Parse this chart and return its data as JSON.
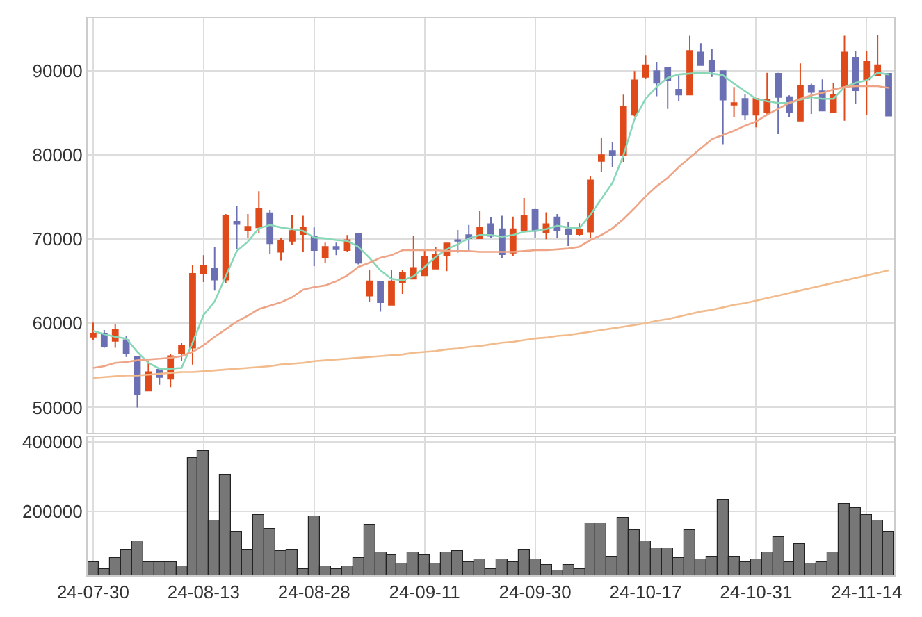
{
  "chart_data": [
    {
      "type": "candlestick",
      "categories": [
        null,
        null,
        null,
        null,
        null,
        null,
        null,
        null,
        null,
        null,
        null,
        null,
        null,
        null,
        null,
        null,
        null,
        null,
        null,
        null,
        null,
        null,
        null,
        null,
        null,
        null,
        null,
        null,
        null,
        null,
        null,
        null,
        null,
        null,
        null,
        null,
        null,
        null,
        null,
        null,
        null,
        null,
        null,
        null,
        null,
        null,
        null,
        null,
        null,
        null,
        null,
        null,
        null,
        null,
        null,
        null,
        null,
        null,
        null,
        null,
        null,
        null,
        null,
        null,
        null,
        null,
        null,
        null,
        null,
        null,
        null,
        null,
        null
      ],
      "ohlc": [
        [
          58400,
          60100,
          58000,
          58800
        ],
        [
          58800,
          59200,
          57100,
          57300
        ],
        [
          57900,
          59900,
          57100,
          59200
        ],
        [
          58000,
          58500,
          56000,
          56400
        ],
        [
          56000,
          56000,
          50000,
          51600
        ],
        [
          52000,
          55500,
          52000,
          54200
        ],
        [
          54500,
          54500,
          52700,
          53600
        ],
        [
          53400,
          56300,
          52400,
          56100
        ],
        [
          56400,
          57700,
          55500,
          57300
        ],
        [
          57100,
          66900,
          55100,
          65900
        ],
        [
          65900,
          68100,
          64900,
          66800
        ],
        [
          66500,
          69100,
          63900,
          65200
        ],
        [
          65200,
          73000,
          64800,
          72800
        ],
        [
          72100,
          74000,
          68800,
          71800
        ],
        [
          71100,
          73000,
          70200,
          71500
        ],
        [
          71400,
          75700,
          70700,
          73600
        ],
        [
          73100,
          73500,
          68200,
          69500
        ],
        [
          68500,
          70200,
          67500,
          69800
        ],
        [
          69800,
          72900,
          69300,
          71000
        ],
        [
          70600,
          72800,
          68500,
          71400
        ],
        [
          70300,
          71400,
          66800,
          68700
        ],
        [
          67800,
          69600,
          67200,
          69100
        ],
        [
          69100,
          69600,
          68100,
          68800
        ],
        [
          68700,
          70500,
          68500,
          69900
        ],
        [
          70600,
          70700,
          67000,
          67200
        ],
        [
          63300,
          66400,
          62500,
          65000
        ],
        [
          64900,
          64900,
          61400,
          62500
        ],
        [
          62200,
          66400,
          62200,
          65000
        ],
        [
          64900,
          66300,
          63500,
          66000
        ],
        [
          65300,
          70400,
          65300,
          66600
        ],
        [
          65700,
          68800,
          65700,
          67900
        ],
        [
          66500,
          69100,
          66500,
          68200
        ],
        [
          68100,
          69500,
          66200,
          69500
        ],
        [
          69900,
          71100,
          68400,
          69800
        ],
        [
          70500,
          71700,
          68600,
          70100
        ],
        [
          70100,
          73400,
          70100,
          71400
        ],
        [
          71800,
          72600,
          70100,
          70400
        ],
        [
          71200,
          72800,
          67800,
          68200
        ],
        [
          68400,
          72700,
          68000,
          71200
        ],
        [
          71100,
          74900,
          71100,
          72800
        ],
        [
          73500,
          73600,
          70100,
          71000
        ],
        [
          70800,
          73200,
          70000,
          71800
        ],
        [
          72600,
          73000,
          70100,
          71100
        ],
        [
          71200,
          72000,
          69200,
          70600
        ],
        [
          70600,
          71900,
          70400,
          71100
        ],
        [
          70900,
          77500,
          70100,
          77000
        ],
        [
          79300,
          82000,
          78000,
          80000
        ],
        [
          80500,
          81600,
          78600,
          80000
        ],
        [
          80000,
          87200,
          79200,
          85800
        ],
        [
          84800,
          90000,
          84600,
          88900
        ],
        [
          89300,
          91900,
          89100,
          90700
        ],
        [
          90000,
          91100,
          87000,
          88600
        ],
        [
          90400,
          90400,
          85500,
          88900
        ],
        [
          87800,
          89500,
          86400,
          87200
        ],
        [
          87200,
          94200,
          87200,
          92400
        ],
        [
          92200,
          93300,
          90700,
          90700
        ],
        [
          91200,
          92600,
          89300,
          90000
        ],
        [
          90000,
          90000,
          81300,
          86600
        ],
        [
          86000,
          88100,
          84500,
          86200
        ],
        [
          86700,
          87300,
          84200,
          84800
        ],
        [
          84800,
          86700,
          83300,
          86700
        ],
        [
          85100,
          89800,
          84800,
          86600
        ],
        [
          89700,
          89800,
          82500,
          86900
        ],
        [
          86900,
          87100,
          84500,
          85100
        ],
        [
          84100,
          90900,
          84100,
          88200
        ],
        [
          88200,
          88500,
          84900,
          87500
        ],
        [
          87600,
          89000,
          85300,
          85300
        ],
        [
          85100,
          88600,
          85100,
          87200
        ],
        [
          88100,
          94200,
          84100,
          92200
        ],
        [
          91600,
          92400,
          86100,
          87700
        ],
        [
          89000,
          92400,
          84800,
          91100
        ],
        [
          89500,
          94300,
          89500,
          90700
        ],
        [
          89700,
          89700,
          84600,
          84700
        ]
      ],
      "colors": [
        "#e04a1a",
        "#6a70b3",
        "#e04a1a",
        "#6a70b3",
        "#6a70b3",
        "#e04a1a",
        "#6a70b3",
        "#e04a1a",
        "#e04a1a",
        "#e04a1a",
        "#e04a1a",
        "#6a70b3",
        "#e04a1a",
        "#6a70b3",
        "#e04a1a",
        "#e04a1a",
        "#6a70b3",
        "#e04a1a",
        "#e04a1a",
        "#e04a1a",
        "#6a70b3",
        "#e04a1a",
        "#6a70b3",
        "#e04a1a",
        "#6a70b3",
        "#e04a1a",
        "#6a70b3",
        "#e04a1a",
        "#e04a1a",
        "#e04a1a",
        "#e04a1a",
        "#e04a1a",
        "#e04a1a",
        "#6a70b3",
        "#6a70b3",
        "#e04a1a",
        "#6a70b3",
        "#6a70b3",
        "#e04a1a",
        "#e04a1a",
        "#6a70b3",
        "#e04a1a",
        "#6a70b3",
        "#6a70b3",
        "#e04a1a",
        "#e04a1a",
        "#e04a1a",
        "#6a70b3",
        "#e04a1a",
        "#e04a1a",
        "#e04a1a",
        "#6a70b3",
        "#6a70b3",
        "#6a70b3",
        "#e04a1a",
        "#6a70b3",
        "#6a70b3",
        "#6a70b3",
        "#e04a1a",
        "#6a70b3",
        "#e04a1a",
        "#e04a1a",
        "#6a70b3",
        "#6a70b3",
        "#e04a1a",
        "#6a70b3",
        "#6a70b3",
        "#e04a1a",
        "#e04a1a",
        "#6a70b3",
        "#e04a1a",
        "#e04a1a",
        "#6a70b3"
      ],
      "series": [
        {
          "type": "line",
          "color": "#88d8b8",
          "values": [
            59100,
            58700,
            58400,
            58200,
            56600,
            55300,
            54600,
            54600,
            54700,
            57700,
            61000,
            62600,
            65600,
            68600,
            69700,
            71300,
            71700,
            71400,
            71200,
            71000,
            70200,
            70100,
            69900,
            69800,
            69100,
            67800,
            66300,
            65300,
            65100,
            65600,
            66700,
            67900,
            68800,
            69400,
            70100,
            70500,
            70500,
            70300,
            70500,
            70900,
            71000,
            71200,
            71600,
            71400,
            71300,
            72900,
            74800,
            76700,
            80000,
            84300,
            86700,
            88100,
            89200,
            89600,
            89700,
            89800,
            89700,
            89500,
            88500,
            87600,
            86700,
            86400,
            86200,
            86200,
            86600,
            86900,
            86700,
            86700,
            88100,
            88600,
            88900,
            89800,
            89600
          ]
        },
        {
          "type": "line",
          "color": "#eea486",
          "values": [
            54700,
            54900,
            55300,
            55400,
            55600,
            55700,
            55800,
            55900,
            56100,
            56600,
            57400,
            58400,
            59300,
            60200,
            60900,
            61700,
            62100,
            62500,
            63100,
            64000,
            64300,
            64500,
            65000,
            65700,
            66700,
            67200,
            67800,
            68100,
            68700,
            68700,
            68700,
            68700,
            68600,
            68600,
            68600,
            68500,
            68500,
            68500,
            68500,
            68600,
            68700,
            68700,
            68800,
            68900,
            69100,
            69900,
            70500,
            71300,
            72400,
            73700,
            75100,
            76300,
            77300,
            78600,
            79700,
            80800,
            81900,
            82400,
            82900,
            83500,
            84000,
            84800,
            85500,
            86200,
            86700,
            87100,
            87400,
            87800,
            88100,
            88200,
            88200,
            88200,
            88000
          ]
        },
        {
          "type": "line",
          "color": "#f2bb8c",
          "values": [
            53500,
            53600,
            53700,
            53800,
            53800,
            53900,
            54000,
            54100,
            54200,
            54200,
            54300,
            54400,
            54500,
            54600,
            54700,
            54800,
            54900,
            55100,
            55200,
            55300,
            55500,
            55600,
            55700,
            55800,
            55900,
            56000,
            56100,
            56200,
            56300,
            56500,
            56600,
            56700,
            56900,
            57000,
            57200,
            57300,
            57500,
            57700,
            57800,
            58000,
            58200,
            58300,
            58500,
            58600,
            58800,
            59000,
            59200,
            59400,
            59600,
            59800,
            60000,
            60300,
            60500,
            60800,
            61100,
            61400,
            61600,
            61900,
            62200,
            62400,
            62700,
            63000,
            63300,
            63600,
            63900,
            64200,
            64500,
            64800,
            65100,
            65400,
            65700,
            66000,
            66300
          ]
        }
      ],
      "ylim": [
        47000,
        96300
      ],
      "yticks": [
        50000,
        60000,
        70000,
        80000,
        90000
      ],
      "grid": true,
      "tick_labels": "y"
    },
    {
      "type": "bar",
      "categories": [
        "24-07-30",
        null,
        null,
        null,
        null,
        null,
        null,
        null,
        null,
        null,
        "24-08-13",
        null,
        null,
        null,
        null,
        null,
        null,
        null,
        null,
        null,
        "24-08-28",
        null,
        null,
        null,
        null,
        null,
        null,
        null,
        null,
        null,
        "24-09-11",
        null,
        null,
        null,
        null,
        null,
        null,
        null,
        null,
        null,
        "24-09-30",
        null,
        null,
        null,
        null,
        null,
        null,
        null,
        null,
        null,
        "24-10-17",
        null,
        null,
        null,
        null,
        null,
        null,
        null,
        null,
        null,
        "24-10-31",
        null,
        null,
        null,
        null,
        null,
        null,
        null,
        null,
        null,
        "24-11-14",
        null,
        null
      ],
      "values": [
        55000,
        35000,
        65000,
        90000,
        115000,
        55000,
        55000,
        55000,
        40000,
        355000,
        375000,
        175000,
        305000,
        140000,
        90000,
        190000,
        150000,
        85000,
        90000,
        35000,
        185000,
        40000,
        35000,
        40000,
        65000,
        160000,
        80000,
        75000,
        50000,
        80000,
        75000,
        50000,
        80000,
        85000,
        55000,
        60000,
        35000,
        60000,
        55000,
        90000,
        60000,
        45000,
        30000,
        45000,
        35000,
        165000,
        165000,
        70000,
        180000,
        145000,
        115000,
        95000,
        95000,
        65000,
        145000,
        60000,
        70000,
        235000,
        70000,
        55000,
        60000,
        80000,
        125000,
        55000,
        105000,
        50000,
        55000,
        80000,
        220000,
        210000,
        190000,
        175000,
        140000
      ],
      "color": "#777777",
      "ylim": [
        16000,
        413000
      ],
      "yticks": [
        200000,
        400000
      ],
      "grid": true
    }
  ]
}
